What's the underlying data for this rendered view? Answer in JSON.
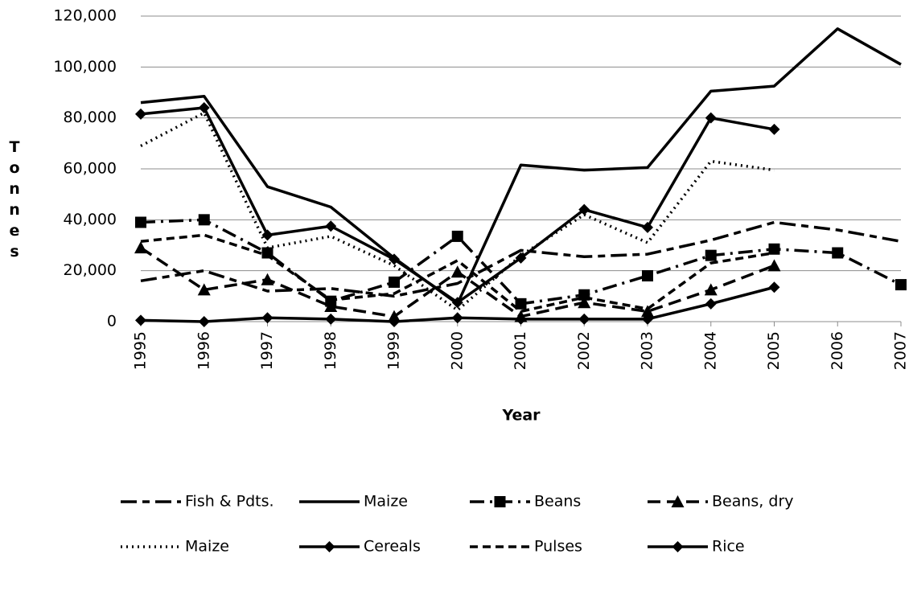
{
  "chart_data": {
    "type": "line",
    "x_label": "Year",
    "y_label": "Tonnes",
    "categories": [
      "1995",
      "1996",
      "1997",
      "1998",
      "1999",
      "2000",
      "2001",
      "2002",
      "2003",
      "2004",
      "2005",
      "2006",
      "2007"
    ],
    "ylim": [
      0,
      120000
    ],
    "yticks": [
      0,
      {
        "value": 20000,
        "label": "20,000"
      },
      {
        "value": 40000,
        "label": "40,000"
      },
      {
        "value": 60000,
        "label": "60,000"
      },
      {
        "value": 80000,
        "label": "80,000"
      },
      {
        "value": 100000,
        "label": "100,000"
      },
      {
        "value": 120000,
        "label": "120,000"
      }
    ],
    "grid": true,
    "legend": "bottom",
    "series": [
      {
        "name": "Fish & Pdts.",
        "color": "#000000",
        "dash": "20,7,9,7",
        "marker": "none",
        "values": [
          16000,
          20000,
          12000,
          13000,
          10000,
          15000,
          28000,
          25500,
          26500,
          32000,
          39000,
          36000,
          31500
        ]
      },
      {
        "name": "Maize",
        "color": "#000000",
        "dash": "none",
        "marker": "none",
        "values": [
          86000,
          88500,
          53000,
          45000,
          25000,
          7000,
          61500,
          59500,
          60500,
          90500,
          92500,
          115000,
          101000
        ]
      },
      {
        "name": "Beans",
        "color": "#000000",
        "dash": "18,7,3,7",
        "marker": "square",
        "values": [
          39000,
          40000,
          27000,
          8000,
          15500,
          33500,
          7000,
          10500,
          18000,
          26000,
          28500,
          27000,
          14500
        ]
      },
      {
        "name": "Beans, dry",
        "color": "#000000",
        "dash": "16,8",
        "marker": "triangle",
        "values": [
          29000,
          12500,
          16500,
          6000,
          2000,
          19500,
          2000,
          7500,
          4000,
          12500,
          22000,
          null,
          null
        ]
      },
      {
        "name": "Maize",
        "color": "#000000",
        "dash": "2,5",
        "marker": "none",
        "values": [
          69000,
          82000,
          29000,
          33500,
          22000,
          4500,
          26000,
          42000,
          31000,
          63000,
          59500,
          null,
          null
        ]
      },
      {
        "name": "Cereals",
        "color": "#000000",
        "dash": "none",
        "marker": "diamond",
        "values": [
          81500,
          84000,
          34000,
          37500,
          24500,
          7500,
          25000,
          44000,
          37000,
          80000,
          75500,
          null,
          null
        ]
      },
      {
        "name": "Pulses",
        "color": "#000000",
        "dash": "10,6",
        "marker": "none",
        "values": [
          31500,
          34000,
          26000,
          8500,
          11000,
          24000,
          4000,
          9500,
          5000,
          23000,
          27000,
          null,
          null
        ]
      },
      {
        "name": "Rice",
        "color": "#000000",
        "dash": "none",
        "marker": "diamond",
        "values": [
          500,
          0,
          1500,
          1000,
          0,
          1500,
          1000,
          1000,
          1000,
          7000,
          13500,
          null,
          null
        ]
      }
    ]
  }
}
